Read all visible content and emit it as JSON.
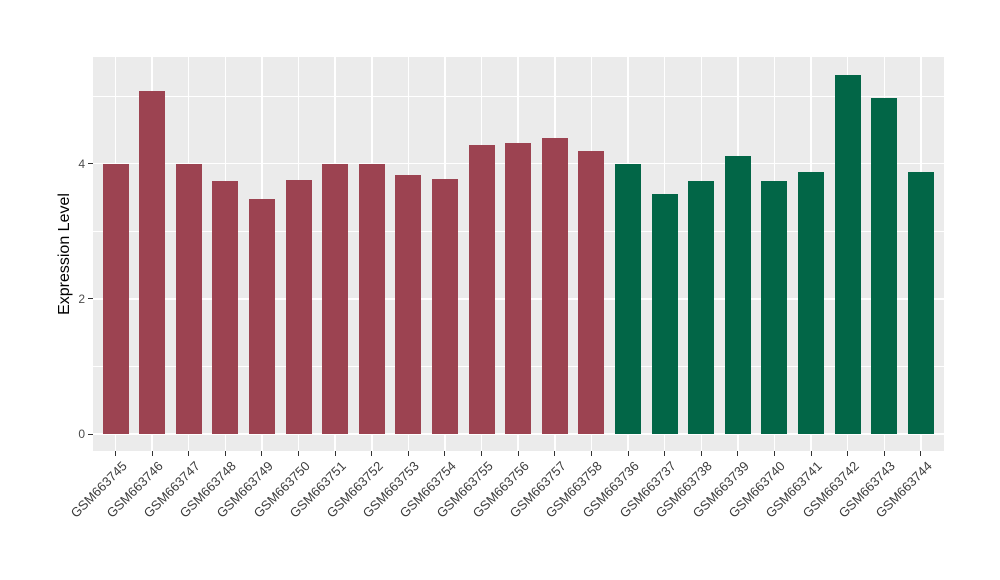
{
  "figure": {
    "background": "#FFFFFF",
    "panel_background": "#EBEBEB",
    "grid_color": "#FFFFFF"
  },
  "chart_data": {
    "type": "bar",
    "title": "",
    "xlabel": "",
    "ylabel": "Expression Level",
    "legend_position": "none",
    "grid": true,
    "x_tick_rotation_deg": 45,
    "y_ticks": [
      0,
      2,
      4
    ],
    "y_minor_ticks": [
      1,
      3,
      5
    ],
    "ylim": [
      -0.27,
      5.58
    ],
    "categories": [
      "GSM663745",
      "GSM663746",
      "GSM663747",
      "GSM663748",
      "GSM663749",
      "GSM663750",
      "GSM663751",
      "GSM663752",
      "GSM663753",
      "GSM663754",
      "GSM663755",
      "GSM663756",
      "GSM663757",
      "GSM663758",
      "GSM663736",
      "GSM663737",
      "GSM663738",
      "GSM663739",
      "GSM663740",
      "GSM663741",
      "GSM663742",
      "GSM663743",
      "GSM663744"
    ],
    "values": [
      4.0,
      5.07,
      4.0,
      3.75,
      3.47,
      3.76,
      4.0,
      4.0,
      3.83,
      3.77,
      4.27,
      4.3,
      4.38,
      4.18,
      4.0,
      3.55,
      3.74,
      4.11,
      3.74,
      3.87,
      5.31,
      4.97,
      3.87
    ],
    "groups": [
      "maroon",
      "maroon",
      "maroon",
      "maroon",
      "maroon",
      "maroon",
      "maroon",
      "maroon",
      "maroon",
      "maroon",
      "maroon",
      "maroon",
      "maroon",
      "maroon",
      "green",
      "green",
      "green",
      "green",
      "green",
      "green",
      "green",
      "green",
      "green"
    ],
    "group_colors": {
      "maroon": "#9C4351",
      "green": "#026647"
    }
  }
}
